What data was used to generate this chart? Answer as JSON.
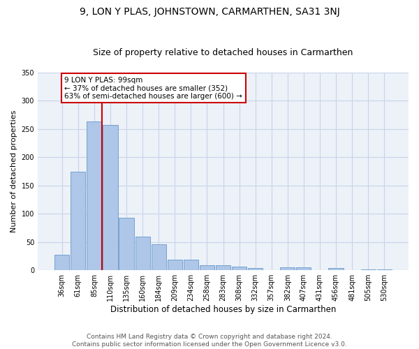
{
  "title": "9, LON Y PLAS, JOHNSTOWN, CARMARTHEN, SA31 3NJ",
  "subtitle": "Size of property relative to detached houses in Carmarthen",
  "xlabel": "Distribution of detached houses by size in Carmarthen",
  "ylabel": "Number of detached properties",
  "categories": [
    "36sqm",
    "61sqm",
    "85sqm",
    "110sqm",
    "135sqm",
    "160sqm",
    "184sqm",
    "209sqm",
    "234sqm",
    "258sqm",
    "283sqm",
    "308sqm",
    "332sqm",
    "357sqm",
    "382sqm",
    "407sqm",
    "431sqm",
    "456sqm",
    "481sqm",
    "505sqm",
    "530sqm"
  ],
  "values": [
    27,
    175,
    263,
    257,
    93,
    60,
    46,
    19,
    19,
    9,
    9,
    7,
    4,
    0,
    5,
    5,
    0,
    4,
    0,
    1,
    2
  ],
  "bar_color": "#aec6e8",
  "bar_edge_color": "#6699cc",
  "vline_index": 2,
  "vline_color": "#cc0000",
  "annotation_text": "9 LON Y PLAS: 99sqm\n← 37% of detached houses are smaller (352)\n63% of semi-detached houses are larger (600) →",
  "annotation_box_color": "#ffffff",
  "annotation_box_edge_color": "#cc0000",
  "ylim": [
    0,
    350
  ],
  "yticks": [
    0,
    50,
    100,
    150,
    200,
    250,
    300,
    350
  ],
  "grid_color": "#c8d4e8",
  "bg_color": "#edf1f8",
  "footer": "Contains HM Land Registry data © Crown copyright and database right 2024.\nContains public sector information licensed under the Open Government Licence v3.0.",
  "title_fontsize": 10,
  "subtitle_fontsize": 9,
  "xlabel_fontsize": 8.5,
  "ylabel_fontsize": 8,
  "tick_fontsize": 7,
  "annotation_fontsize": 7.5,
  "footer_fontsize": 6.5
}
